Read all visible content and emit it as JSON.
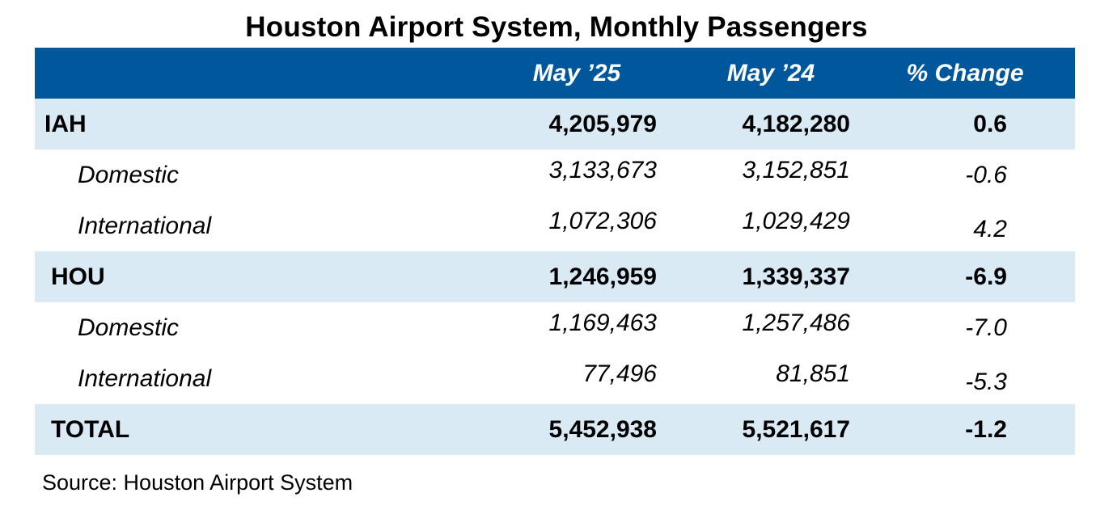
{
  "title": "Houston Airport System, Monthly Passengers",
  "header": {
    "col1": "May ’25",
    "col2": "May ’24",
    "col3": "% Change"
  },
  "rows": [
    {
      "label": "IAH",
      "may25": "4,205,979",
      "may24": "4,182,280",
      "pct": "0.6"
    },
    {
      "label": "Domestic",
      "may25": "3,133,673",
      "may24": "3,152,851",
      "pct": "-0.6"
    },
    {
      "label": "International",
      "may25": "1,072,306",
      "may24": "1,029,429",
      "pct": "4.2"
    },
    {
      "label": "HOU",
      "may25": "1,246,959",
      "may24": "1,339,337",
      "pct": "-6.9"
    },
    {
      "label": "Domestic",
      "may25": "1,169,463",
      "may24": "1,257,486",
      "pct": "-7.0"
    },
    {
      "label": "International",
      "may25": "77,496",
      "may24": "81,851",
      "pct": "-5.3"
    },
    {
      "label": "TOTAL",
      "may25": "5,452,938",
      "may24": "5,521,617",
      "pct": "-1.2"
    }
  ],
  "source": "Source: Houston Airport System",
  "chart_data": {
    "type": "table",
    "title": "Houston Airport System, Monthly Passengers",
    "columns": [
      "",
      "May ’25",
      "May ’24",
      "% Change"
    ],
    "data": [
      [
        "IAH",
        4205979,
        4182280,
        0.6
      ],
      [
        "Domestic",
        3133673,
        3152851,
        -0.6
      ],
      [
        "International",
        1072306,
        1029429,
        4.2
      ],
      [
        "HOU",
        1246959,
        1339337,
        -6.9
      ],
      [
        "Domestic",
        1169463,
        1257486,
        -7.0
      ],
      [
        "International",
        77496,
        81851,
        -5.3
      ],
      [
        "TOTAL",
        5452938,
        5521617,
        -1.2
      ]
    ]
  },
  "colors": {
    "header_bg": "#01579b",
    "header_text": "#ffffff",
    "shaded_row": "#daeaf4"
  }
}
